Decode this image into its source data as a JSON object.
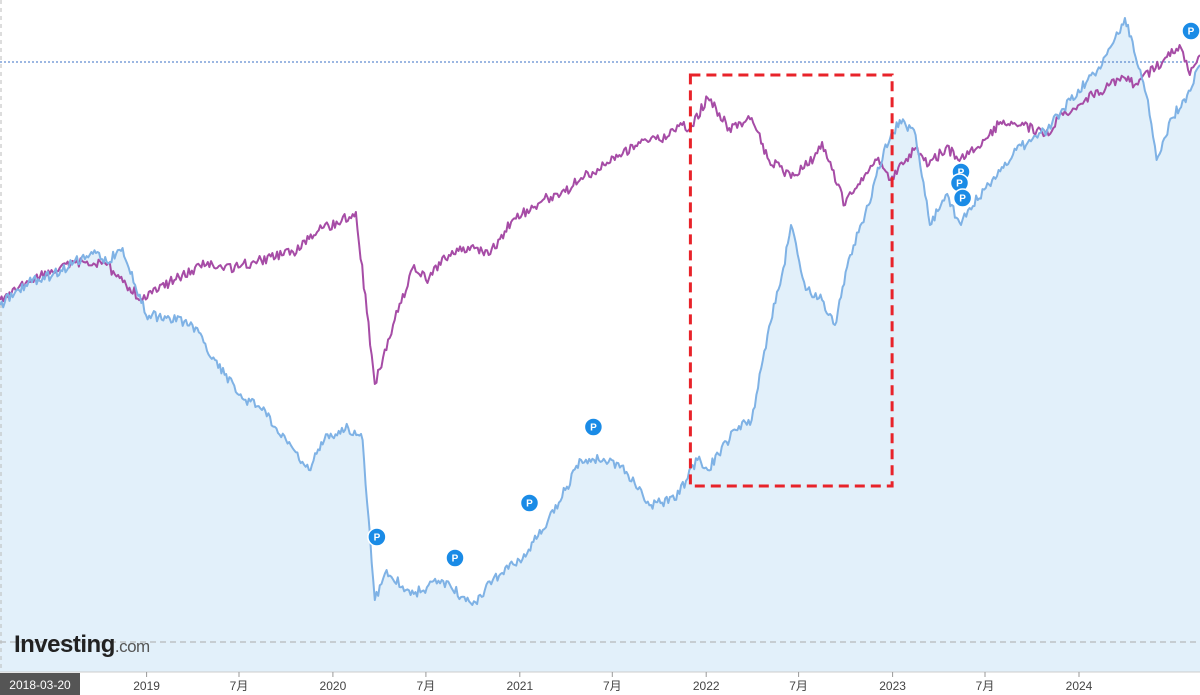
{
  "brand": {
    "name": "Investing",
    "suffix": ".com"
  },
  "chart_data": {
    "type": "line",
    "xlim": [
      "2018-03-20",
      "2024-08-25"
    ],
    "x_ticks": [
      {
        "date": "2018-03-20",
        "label": "2018-03-20"
      },
      {
        "date": "2019-01-01",
        "label": "2019"
      },
      {
        "date": "2019-07-01",
        "label": "7月"
      },
      {
        "date": "2020-01-01",
        "label": "2020"
      },
      {
        "date": "2020-07-01",
        "label": "7月"
      },
      {
        "date": "2021-01-01",
        "label": "2021"
      },
      {
        "date": "2021-07-01",
        "label": "7月"
      },
      {
        "date": "2022-01-01",
        "label": "2022"
      },
      {
        "date": "2022-07-01",
        "label": "7月"
      },
      {
        "date": "2023-01-01",
        "label": "2023"
      },
      {
        "date": "2023-07-01",
        "label": "7月"
      },
      {
        "date": "2024-01-01",
        "label": "2024"
      }
    ],
    "grid": false,
    "reference_line_y": 62,
    "baseline_y": 642,
    "series": [
      {
        "color": "#a64ca6",
        "points": [
          [
            "2018-03-20",
            300
          ],
          [
            "2018-05-15",
            282
          ],
          [
            "2018-07-15",
            268
          ],
          [
            "2018-08-31",
            262
          ],
          [
            "2018-10-15",
            265
          ],
          [
            "2018-12-24",
            300
          ],
          [
            "2019-02-15",
            282
          ],
          [
            "2019-05-01",
            262
          ],
          [
            "2019-06-01",
            270
          ],
          [
            "2019-08-01",
            262
          ],
          [
            "2019-10-15",
            252
          ],
          [
            "2019-12-01",
            232
          ],
          [
            "2020-02-15",
            212
          ],
          [
            "2020-03-23",
            384
          ],
          [
            "2020-05-01",
            320
          ],
          [
            "2020-06-08",
            265
          ],
          [
            "2020-07-01",
            280
          ],
          [
            "2020-08-15",
            255
          ],
          [
            "2020-10-01",
            245
          ],
          [
            "2020-11-01",
            255
          ],
          [
            "2020-12-15",
            222
          ],
          [
            "2021-02-15",
            200
          ],
          [
            "2021-03-31",
            192
          ],
          [
            "2021-05-01",
            178
          ],
          [
            "2021-06-15",
            165
          ],
          [
            "2021-07-15",
            155
          ],
          [
            "2021-08-31",
            140
          ],
          [
            "2021-10-01",
            140
          ],
          [
            "2021-11-15",
            125
          ],
          [
            "2021-12-01",
            128
          ],
          [
            "2022-01-04",
            98
          ],
          [
            "2022-02-15",
            128
          ],
          [
            "2022-03-31",
            118
          ],
          [
            "2022-05-01",
            158
          ],
          [
            "2022-06-16",
            178
          ],
          [
            "2022-07-31",
            158
          ],
          [
            "2022-08-16",
            142
          ],
          [
            "2022-09-30",
            205
          ],
          [
            "2022-11-01",
            178
          ],
          [
            "2022-12-01",
            160
          ],
          [
            "2022-12-28",
            180
          ],
          [
            "2023-02-15",
            148
          ],
          [
            "2023-03-13",
            165
          ],
          [
            "2023-04-15",
            148
          ],
          [
            "2023-05-15",
            158
          ],
          [
            "2023-06-30",
            140
          ],
          [
            "2023-07-31",
            122
          ],
          [
            "2023-09-15",
            125
          ],
          [
            "2023-10-27",
            135
          ],
          [
            "2023-12-01",
            115
          ],
          [
            "2024-01-15",
            98
          ],
          [
            "2024-03-31",
            78
          ],
          [
            "2024-04-19",
            85
          ],
          [
            "2024-06-15",
            60
          ],
          [
            "2024-07-16",
            45
          ],
          [
            "2024-08-05",
            75
          ],
          [
            "2024-08-25",
            55
          ]
        ]
      },
      {
        "color": "#7fb2e5",
        "fill": "#e2f0fa",
        "points": [
          [
            "2018-03-20",
            305
          ],
          [
            "2018-05-15",
            282
          ],
          [
            "2018-07-01",
            275
          ],
          [
            "2018-09-15",
            252
          ],
          [
            "2018-10-15",
            262
          ],
          [
            "2018-11-15",
            248
          ],
          [
            "2018-12-31",
            315
          ],
          [
            "2019-02-15",
            318
          ],
          [
            "2019-04-01",
            325
          ],
          [
            "2019-05-15",
            360
          ],
          [
            "2019-07-01",
            395
          ],
          [
            "2019-08-15",
            410
          ],
          [
            "2019-10-01",
            440
          ],
          [
            "2019-11-15",
            470
          ],
          [
            "2019-12-15",
            440
          ],
          [
            "2020-01-31",
            428
          ],
          [
            "2020-02-28",
            440
          ],
          [
            "2020-03-23",
            600
          ],
          [
            "2020-04-15",
            570
          ],
          [
            "2020-06-01",
            595
          ],
          [
            "2020-08-01",
            580
          ],
          [
            "2020-09-30",
            605
          ],
          [
            "2020-11-09",
            580
          ],
          [
            "2020-12-31",
            560
          ],
          [
            "2021-02-15",
            530
          ],
          [
            "2021-03-31",
            490
          ],
          [
            "2021-05-01",
            460
          ],
          [
            "2021-06-30",
            460
          ],
          [
            "2021-08-01",
            475
          ],
          [
            "2021-09-15",
            505
          ],
          [
            "2021-10-31",
            500
          ],
          [
            "2021-12-15",
            460
          ],
          [
            "2022-01-04",
            470
          ],
          [
            "2022-02-28",
            430
          ],
          [
            "2022-03-31",
            420
          ],
          [
            "2022-05-01",
            335
          ],
          [
            "2022-06-01",
            268
          ],
          [
            "2022-06-16",
            225
          ],
          [
            "2022-07-15",
            290
          ],
          [
            "2022-08-16",
            300
          ],
          [
            "2022-09-10",
            325
          ],
          [
            "2022-10-10",
            255
          ],
          [
            "2022-11-15",
            205
          ],
          [
            "2022-12-15",
            150
          ],
          [
            "2023-01-15",
            120
          ],
          [
            "2023-02-15",
            135
          ],
          [
            "2023-03-15",
            225
          ],
          [
            "2023-04-15",
            195
          ],
          [
            "2023-05-15",
            225
          ],
          [
            "2023-06-01",
            208
          ],
          [
            "2023-07-15",
            180
          ],
          [
            "2023-08-31",
            150
          ],
          [
            "2023-10-31",
            130
          ],
          [
            "2023-12-15",
            100
          ],
          [
            "2024-02-15",
            65
          ],
          [
            "2024-03-31",
            18
          ],
          [
            "2024-04-30",
            70
          ],
          [
            "2024-05-15",
            100
          ],
          [
            "2024-06-01",
            160
          ],
          [
            "2024-07-01",
            118
          ],
          [
            "2024-07-31",
            95
          ],
          [
            "2024-08-25",
            65
          ]
        ]
      }
    ],
    "markers": [
      {
        "date": "2020-03-27",
        "y": 537,
        "label": "P"
      },
      {
        "date": "2020-08-27",
        "y": 558,
        "label": "P"
      },
      {
        "date": "2021-01-20",
        "y": 503,
        "label": "P"
      },
      {
        "date": "2021-05-25",
        "y": 427,
        "label": "P"
      },
      {
        "date": "2023-05-15",
        "y": 172,
        "label": "P"
      },
      {
        "date": "2023-05-12",
        "y": 183,
        "label": "P"
      },
      {
        "date": "2023-05-18",
        "y": 198,
        "label": "P"
      },
      {
        "date": "2024-08-22",
        "y": 31,
        "label": "P"
      }
    ],
    "highlight": {
      "x_start": "2021-12-01",
      "x_end": "2022-12-31",
      "y_top": 75,
      "y_bottom": 486,
      "color": "#e8232a"
    }
  }
}
